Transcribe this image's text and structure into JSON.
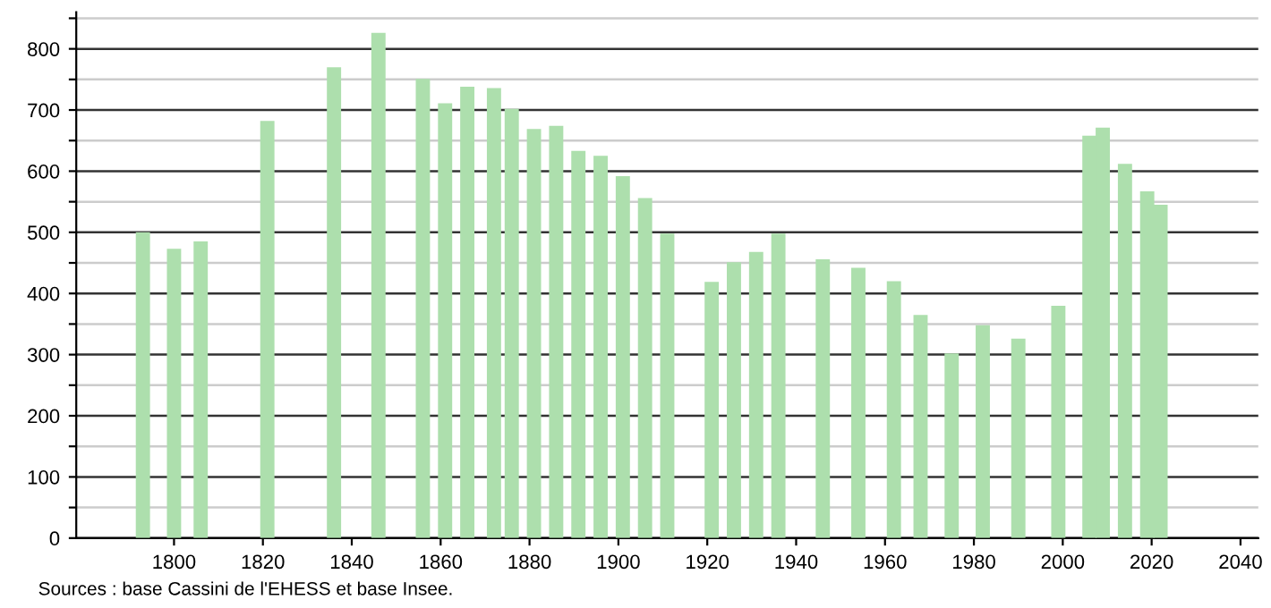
{
  "chart_data": {
    "type": "bar",
    "x": [
      1793,
      1800,
      1806,
      1821,
      1836,
      1846,
      1856,
      1861,
      1866,
      1872,
      1876,
      1881,
      1886,
      1891,
      1896,
      1901,
      1906,
      1911,
      1921,
      1926,
      1931,
      1936,
      1946,
      1954,
      1962,
      1968,
      1975,
      1982,
      1990,
      1999,
      2006,
      2009,
      2014,
      2019,
      2022
    ],
    "values": [
      500,
      473,
      485,
      682,
      770,
      826,
      751,
      711,
      738,
      736,
      702,
      669,
      674,
      633,
      625,
      592,
      556,
      498,
      419,
      451,
      468,
      498,
      456,
      442,
      420,
      365,
      302,
      348,
      326,
      380,
      658,
      671,
      612,
      567,
      545
    ],
    "color": "#addfad",
    "xlim": [
      1778,
      2044
    ],
    "xticks": [
      1800,
      1820,
      1840,
      1860,
      1880,
      1900,
      1920,
      1940,
      1960,
      1980,
      2000,
      2020,
      2040
    ],
    "ylim": [
      0,
      860
    ],
    "yticks": [
      0,
      {
        "value": 50,
        "label": null
      },
      100,
      {
        "value": 150,
        "label": null
      },
      200,
      {
        "value": 250,
        "label": null
      },
      300,
      {
        "value": 350,
        "label": null
      },
      400,
      {
        "value": 450,
        "label": null
      },
      500,
      {
        "value": 550,
        "label": null
      },
      600,
      {
        "value": 650,
        "label": null
      },
      700,
      {
        "value": 750,
        "label": null
      },
      800,
      {
        "value": 850,
        "label": null
      }
    ],
    "grid": "y",
    "annotations": [
      "Sources : base Cassini de l'EHESS et base Insee."
    ]
  }
}
